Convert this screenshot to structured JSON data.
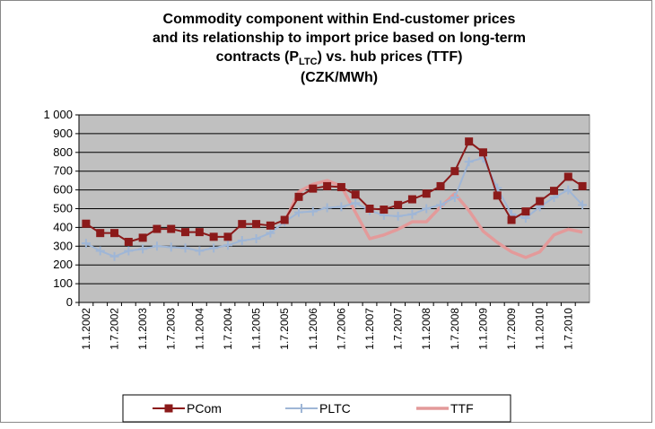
{
  "chart_data": {
    "type": "line",
    "title": [
      "Commodity component within End-customer prices",
      "and its relationship to import price based on long-term",
      [
        "contracts (P",
        "LTC",
        ") vs. hub prices (TTF)"
      ],
      "(CZK/MWh)"
    ],
    "categories": [
      "1.1.2002",
      null,
      "1.7.2002",
      null,
      "1.1.2003",
      null,
      "1.7.2003",
      null,
      "1.1.2004",
      null,
      "1.7.2004",
      null,
      "1.1.2005",
      null,
      "1.7.2005",
      null,
      "1.1.2006",
      null,
      "1.7.2006",
      null,
      "1.1.2007",
      null,
      "1.7.2007",
      null,
      "1.1.2008",
      null,
      "1.7.2008",
      null,
      "1.1.2009",
      null,
      "1.7.2009",
      null,
      "1.1.2010",
      null,
      "1.7.2010",
      null
    ],
    "series": [
      {
        "name": "PCom",
        "color": "#8b1a1a",
        "marker": "square",
        "values": [
          420,
          370,
          370,
          323,
          345,
          392,
          392,
          375,
          375,
          350,
          350,
          418,
          418,
          410,
          440,
          563,
          607,
          620,
          615,
          575,
          500,
          495,
          520,
          550,
          580,
          620,
          700,
          858,
          800,
          570,
          440,
          485,
          540,
          595,
          670,
          620
        ]
      },
      {
        "name": "PLTC",
        "color": "#9fb6d6",
        "marker": "plus",
        "values": [
          315,
          275,
          245,
          275,
          285,
          300,
          295,
          290,
          275,
          290,
          305,
          330,
          340,
          370,
          430,
          480,
          485,
          505,
          510,
          530,
          490,
          465,
          460,
          470,
          500,
          520,
          560,
          750,
          770,
          610,
          470,
          450,
          510,
          560,
          600,
          520
        ]
      },
      {
        "name": "TTF",
        "color": "#e39a9a",
        "marker": "none",
        "values": [
          null,
          null,
          null,
          null,
          null,
          null,
          null,
          null,
          null,
          null,
          null,
          null,
          null,
          null,
          430,
          590,
          630,
          650,
          620,
          480,
          340,
          360,
          390,
          430,
          430,
          510,
          580,
          490,
          380,
          320,
          270,
          240,
          270,
          360,
          390,
          375
        ]
      }
    ],
    "ylim": [
      0,
      1000
    ],
    "yticks": [
      0,
      100,
      200,
      300,
      400,
      500,
      600,
      700,
      800,
      900,
      {
        "value": 1000,
        "label": "1 000"
      }
    ],
    "grid": true,
    "legend": "bottom",
    "plot_background": "#c0c0c0"
  }
}
